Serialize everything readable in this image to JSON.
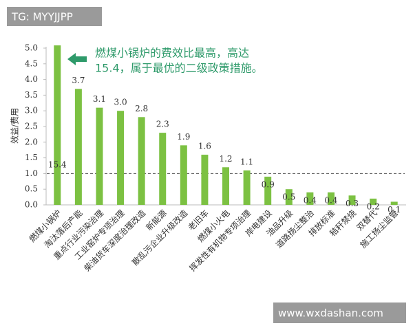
{
  "chart_data": {
    "type": "bar",
    "watermark_top": "TG: MYYJJPP",
    "watermark_bottom": "www.wxdashan.com",
    "y_label": "效益/费用",
    "annotation": [
      "燃煤小锅炉的费效比最高，高达",
      "15.4，属于最优的二级政策措施。"
    ],
    "categories": [
      "燃煤小锅炉",
      "淘汰落后产能",
      "重点行业污染治理",
      "工业窑炉专项治理",
      "柴油货车深度治理改造",
      "新能源",
      "散乱污企业升级改造",
      "老旧车",
      "燃煤小火电",
      "挥发性有机物专项治理",
      "岸电建设",
      "油品升级",
      "道路扬尘整治",
      "排放标准",
      "秸秆禁烧",
      "双替代",
      "施工扬尘监管"
    ],
    "values": [
      15.4,
      3.7,
      3.1,
      3.0,
      2.8,
      2.3,
      1.9,
      1.6,
      1.2,
      1.1,
      0.9,
      0.5,
      0.4,
      0.4,
      0.3,
      0.2,
      0.1
    ],
    "value_labels": [
      "15.4",
      "3.7",
      "3.1",
      "3.0",
      "2.8",
      "2.3",
      "1.9",
      "1.6",
      "1.2",
      "1.1",
      "0.9",
      "0.5",
      "0.4",
      "0.4",
      "0.3",
      "0.2",
      "0.1"
    ],
    "color": "#7cc142",
    "ylim": [
      0,
      5
    ],
    "yticks": [
      {
        "value": 0,
        "label": "0.0"
      },
      {
        "value": 0.5,
        "label": "0.5"
      },
      {
        "value": 1,
        "label": "1.0"
      },
      {
        "value": 1.5,
        "label": "1.5"
      },
      {
        "value": 2,
        "label": "2.0"
      },
      {
        "value": 2.5,
        "label": "2.5"
      },
      {
        "value": 3,
        "label": "3.0"
      },
      {
        "value": 3.5,
        "label": "3.5"
      },
      {
        "value": 4,
        "label": "4.0"
      },
      {
        "value": 4.5,
        "label": "4.5"
      },
      {
        "value": 5,
        "label": "5.0"
      }
    ],
    "reference_line": 1
  }
}
